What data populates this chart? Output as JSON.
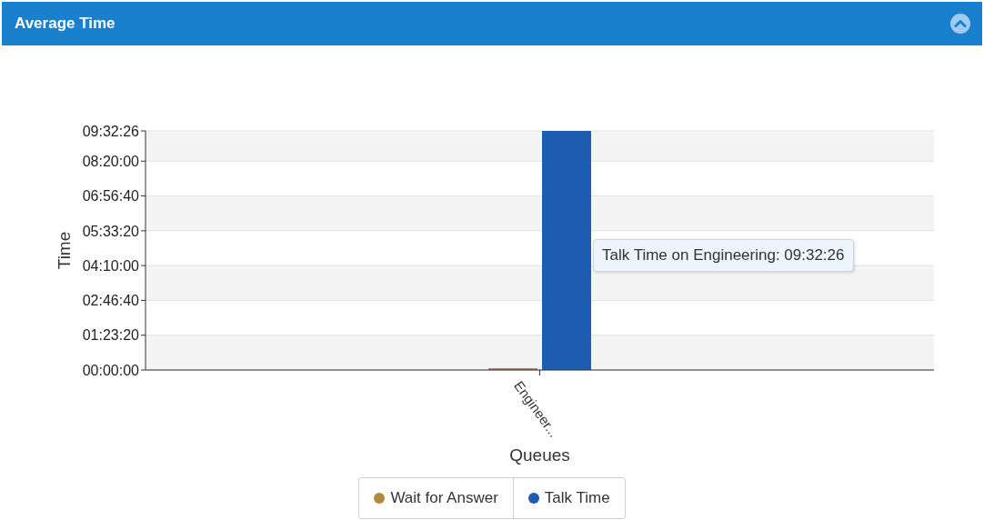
{
  "chart_data": {
    "type": "bar",
    "title": "Average Time",
    "xlabel": "Queues",
    "ylabel": "Time",
    "categories": [
      "Engineer..."
    ],
    "series": [
      {
        "name": "Wait for Answer",
        "color": "#b08a40",
        "values": [
          0
        ]
      },
      {
        "name": "Talk Time",
        "color": "#1d5cb0",
        "values": [
          34346
        ]
      }
    ],
    "ylim": [
      0,
      34346
    ],
    "yticks": [
      {
        "value": 0,
        "label": "00:00:00"
      },
      {
        "value": 5000,
        "label": "01:23:20"
      },
      {
        "value": 10000,
        "label": "02:46:40"
      },
      {
        "value": 15000,
        "label": "04:10:00"
      },
      {
        "value": 20000,
        "label": "05:33:20"
      },
      {
        "value": 25000,
        "label": "06:56:40"
      },
      {
        "value": 30000,
        "label": "08:20:00"
      },
      {
        "value": 34346,
        "label": "09:32:26"
      }
    ],
    "grid": "y",
    "legend": "bottom",
    "annotations": [
      "Talk Time on Engineering: 09:32:26"
    ]
  }
}
